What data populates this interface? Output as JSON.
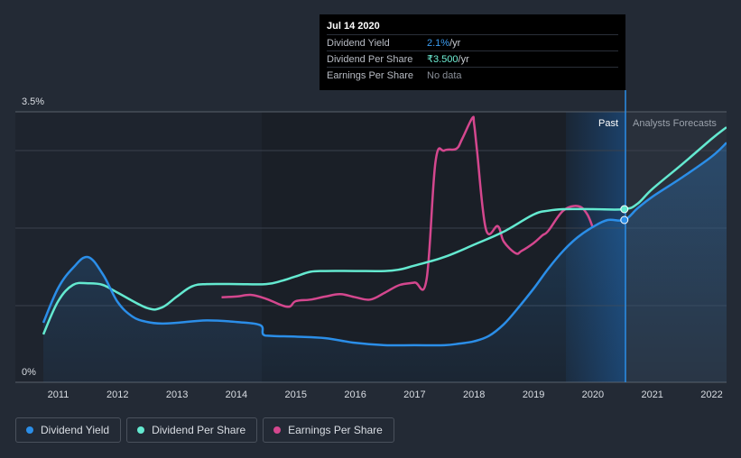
{
  "chart_data": {
    "type": "line",
    "title": "",
    "xlabel": "",
    "ylabel": "",
    "ylim": [
      0,
      3.5
    ],
    "y_tick_labels": [
      "0%",
      "3.5%"
    ],
    "x_ticks": [
      "2011",
      "2012",
      "2013",
      "2014",
      "2015",
      "2016",
      "2017",
      "2018",
      "2019",
      "2020",
      "2021",
      "2022"
    ],
    "period_labels": {
      "past": "Past",
      "forecast": "Analysts Forecasts"
    },
    "colors": {
      "yield": "#2b8ee8",
      "dps": "#64e9d0",
      "eps": "#d4478e"
    },
    "series": [
      {
        "name": "Dividend Yield",
        "x": [
          2010.75,
          2011.0,
          2011.25,
          2011.5,
          2011.75,
          2012.0,
          2012.25,
          2012.5,
          2012.75,
          2013.0,
          2013.5,
          2014.0,
          2014.4,
          2014.45,
          2014.6,
          2015.0,
          2015.5,
          2016.0,
          2016.5,
          2017.0,
          2017.5,
          2017.75,
          2018.0,
          2018.25,
          2018.5,
          2018.75,
          2019.0,
          2019.25,
          2019.5,
          2019.75,
          2020.0,
          2020.25,
          2020.53,
          2020.75,
          2021.0,
          2021.5,
          2022.0,
          2022.25
        ],
        "values": [
          0.77,
          1.22,
          1.48,
          1.62,
          1.4,
          1.04,
          0.85,
          0.78,
          0.76,
          0.77,
          0.8,
          0.78,
          0.74,
          0.62,
          0.6,
          0.59,
          0.57,
          0.51,
          0.48,
          0.48,
          0.48,
          0.5,
          0.53,
          0.6,
          0.75,
          0.97,
          1.21,
          1.47,
          1.7,
          1.88,
          2.01,
          2.1,
          2.1,
          2.25,
          2.4,
          2.65,
          2.92,
          3.1
        ]
      },
      {
        "name": "Dividend Per Share",
        "x": [
          2010.75,
          2011.0,
          2011.25,
          2011.5,
          2011.75,
          2012.0,
          2012.5,
          2012.75,
          2013.0,
          2013.25,
          2013.5,
          2014.0,
          2014.5,
          2014.75,
          2015.0,
          2015.25,
          2015.5,
          2016.0,
          2016.5,
          2016.75,
          2017.0,
          2017.5,
          2018.0,
          2018.5,
          2019.0,
          2019.25,
          2019.5,
          2020.0,
          2020.53,
          2020.75,
          2021.0,
          2021.5,
          2022.0,
          2022.25
        ],
        "values": [
          0.62,
          1.05,
          1.26,
          1.28,
          1.26,
          1.16,
          0.96,
          0.97,
          1.11,
          1.24,
          1.27,
          1.27,
          1.27,
          1.31,
          1.37,
          1.43,
          1.44,
          1.44,
          1.44,
          1.46,
          1.51,
          1.62,
          1.78,
          1.95,
          2.17,
          2.22,
          2.24,
          2.24,
          2.24,
          2.31,
          2.5,
          2.82,
          3.15,
          3.3
        ]
      },
      {
        "name": "Earnings Per Share",
        "x": [
          2013.75,
          2014.0,
          2014.25,
          2014.5,
          2014.75,
          2014.9,
          2015.0,
          2015.25,
          2015.5,
          2015.75,
          2016.0,
          2016.25,
          2016.5,
          2016.75,
          2017.0,
          2017.2,
          2017.35,
          2017.5,
          2017.7,
          2017.8,
          2017.97,
          2018.0,
          2018.05,
          2018.2,
          2018.4,
          2018.5,
          2018.7,
          2018.8,
          2019.0,
          2019.15,
          2019.25,
          2019.5,
          2019.75,
          2019.9,
          2020.0
        ],
        "values": [
          1.1,
          1.11,
          1.13,
          1.08,
          1.0,
          0.98,
          1.05,
          1.07,
          1.11,
          1.14,
          1.1,
          1.07,
          1.16,
          1.26,
          1.29,
          1.33,
          2.85,
          3.0,
          3.02,
          3.15,
          3.42,
          3.35,
          3.0,
          1.98,
          2.02,
          1.82,
          1.67,
          1.7,
          1.8,
          1.9,
          1.96,
          2.22,
          2.28,
          2.18,
          2.0
        ]
      }
    ],
    "highlight": {
      "x": 2020.53,
      "yield": 2.1,
      "dps": 2.24
    }
  },
  "tooltip": {
    "date": "Jul 14 2020",
    "rows": [
      {
        "label": "Dividend Yield",
        "value": "2.1%",
        "unit": " /yr"
      },
      {
        "label": "Dividend Per Share",
        "value": "₹3.500",
        "unit": " /yr"
      },
      {
        "label": "Earnings Per Share",
        "value": "No data"
      }
    ]
  },
  "legend": [
    {
      "label": "Dividend Yield",
      "color": "#2b8ee8"
    },
    {
      "label": "Dividend Per Share",
      "color": "#64e9d0"
    },
    {
      "label": "Earnings Per Share",
      "color": "#d4478e"
    }
  ]
}
